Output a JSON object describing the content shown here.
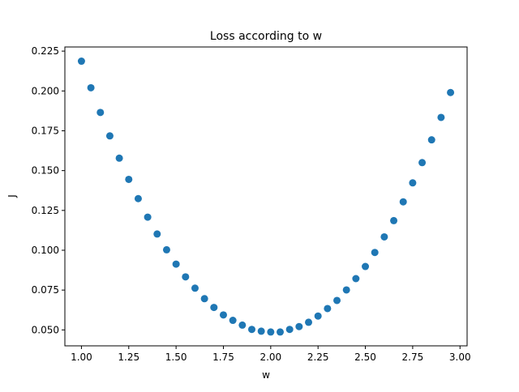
{
  "chart_data": {
    "type": "scatter",
    "title": "Loss according to w",
    "xlabel": "w",
    "ylabel": "J",
    "xlim": [
      0.9125,
      3.0375
    ],
    "ylim": [
      0.04,
      0.2276
    ],
    "grid": false,
    "color": "#1f77b4",
    "xticks": [
      1.0,
      1.25,
      1.5,
      1.75,
      2.0,
      2.25,
      2.5,
      2.75,
      3.0
    ],
    "xtick_labels": [
      "1.00",
      "1.25",
      "1.50",
      "1.75",
      "2.00",
      "2.25",
      "2.50",
      "2.75",
      "3.00"
    ],
    "yticks": [
      0.05,
      0.075,
      0.1,
      0.125,
      0.15,
      0.175,
      0.2,
      0.225
    ],
    "ytick_labels": [
      "0.050",
      "0.075",
      "0.100",
      "0.125",
      "0.150",
      "0.175",
      "0.200",
      "0.225"
    ],
    "series": [
      {
        "x": [
          1.0,
          1.05,
          1.1,
          1.15,
          1.2,
          1.25,
          1.3,
          1.35,
          1.4,
          1.45,
          1.5,
          1.55,
          1.6,
          1.65,
          1.7,
          1.75,
          1.8,
          1.85,
          1.9,
          1.95,
          2.0,
          2.05,
          2.1,
          2.15,
          2.2,
          2.25,
          2.3,
          2.35,
          2.4,
          2.45,
          2.5,
          2.55,
          2.6,
          2.65,
          2.7,
          2.75,
          2.8,
          2.85,
          2.9,
          2.95
        ],
        "y": [
          0.2187,
          0.202,
          0.1865,
          0.1718,
          0.1578,
          0.1445,
          0.1324,
          0.1208,
          0.1102,
          0.1003,
          0.0913,
          0.0833,
          0.0762,
          0.0696,
          0.0641,
          0.0594,
          0.056,
          0.053,
          0.0503,
          0.0492,
          0.0487,
          0.0487,
          0.0503,
          0.0521,
          0.0548,
          0.0587,
          0.0634,
          0.0685,
          0.0751,
          0.0822,
          0.0898,
          0.0986,
          0.1084,
          0.1186,
          0.1304,
          0.1423,
          0.155,
          0.1693,
          0.1834,
          0.199
        ]
      }
    ]
  }
}
